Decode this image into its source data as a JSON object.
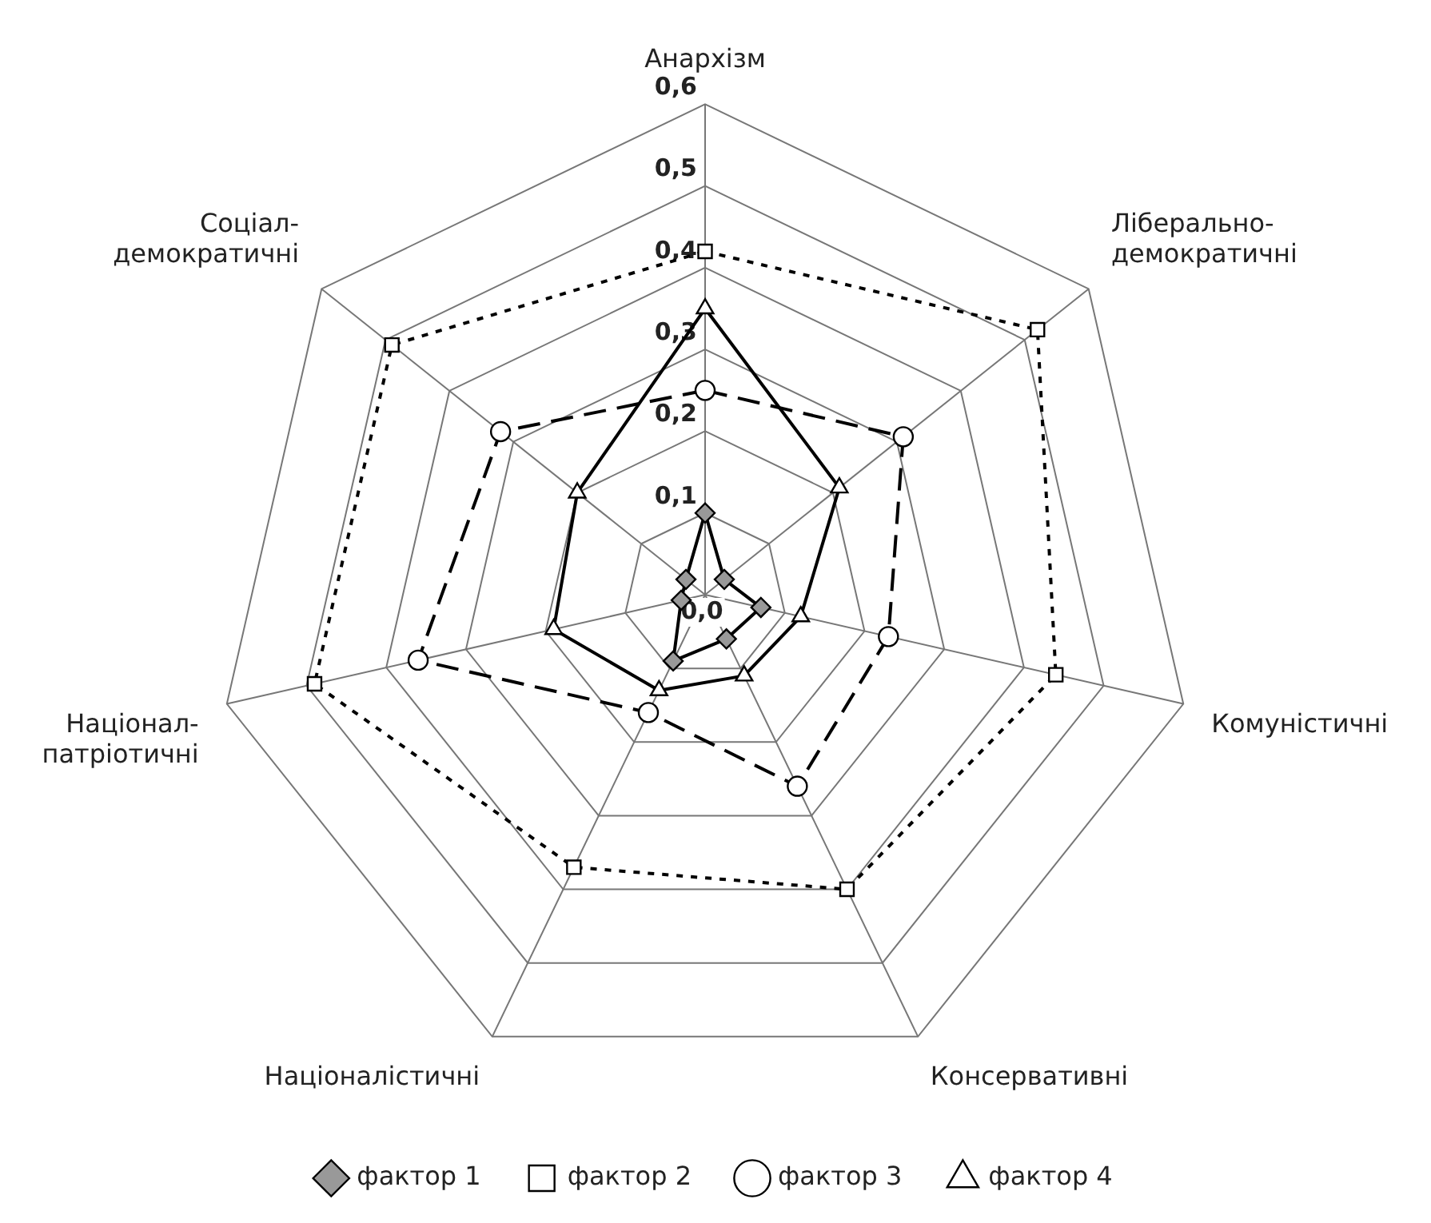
{
  "chart_data": {
    "type": "radar",
    "categories": [
      "Анархізм",
      "Ліберально-демократичні",
      "Комуністичні",
      "Консервативні",
      "Націоналістичні",
      "Націонал-патріотичні",
      "Соціал-демократичні"
    ],
    "series": [
      {
        "name": "фактор 1",
        "color": "#000000",
        "marker": "diamond",
        "line_style": "solid",
        "values": [
          0.1,
          0.03,
          0.07,
          0.06,
          0.09,
          0.03,
          0.03
        ]
      },
      {
        "name": "фактор 2",
        "color": "#000000",
        "marker": "square",
        "line_style": "dotted",
        "values": [
          0.42,
          0.52,
          0.44,
          0.4,
          0.37,
          0.49,
          0.49
        ]
      },
      {
        "name": "фактор 3",
        "color": "#000000",
        "marker": "circle",
        "line_style": "dashed",
        "values": [
          0.25,
          0.31,
          0.23,
          0.26,
          0.16,
          0.36,
          0.32
        ]
      },
      {
        "name": "фактор 4",
        "color": "#000000",
        "marker": "triangle",
        "line_style": "solid",
        "values": [
          0.35,
          0.21,
          0.12,
          0.11,
          0.13,
          0.19,
          0.2
        ]
      }
    ],
    "ylim": [
      0,
      0.6
    ],
    "yticks": [
      {
        "value": 0,
        "label": "0,0"
      },
      {
        "value": 0.1,
        "label": "0,1"
      },
      {
        "value": 0.2,
        "label": "0,2"
      },
      {
        "value": 0.3,
        "label": "0,3"
      },
      {
        "value": 0.4,
        "label": "0,4"
      },
      {
        "value": 0.5,
        "label": "0,5"
      },
      {
        "value": 0.6,
        "label": "0,6"
      }
    ],
    "grid": true,
    "legend": "bottom"
  }
}
